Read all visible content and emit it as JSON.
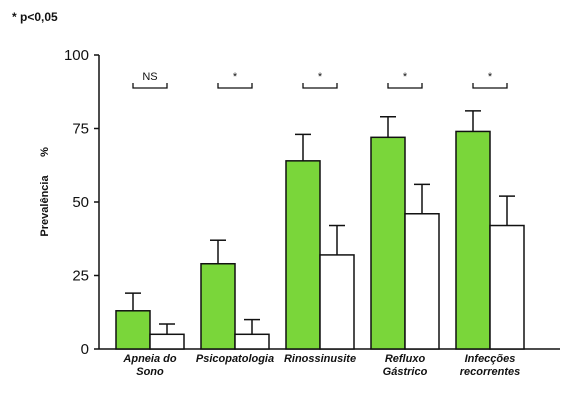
{
  "note": "* p<0,05",
  "colors": {
    "groupA": "#7ad63a",
    "groupB": "#ffffff",
    "stroke": "#111111"
  },
  "chart_data": {
    "type": "bar",
    "title": "",
    "ylabel": "Prevalência",
    "yunit": "%",
    "ylim": [
      0,
      100
    ],
    "yticks": [
      0,
      25,
      50,
      75,
      100
    ],
    "grid": false,
    "categories": [
      [
        "Apneia do",
        "Sono"
      ],
      [
        "Psicopatologia"
      ],
      [
        "Rinossinusite"
      ],
      [
        "Refluxo",
        "Gástrico"
      ],
      [
        "Infecções",
        "recorrentes"
      ]
    ],
    "series": [
      {
        "values": [
          13,
          29,
          64,
          72,
          74
        ],
        "errors": [
          6,
          8,
          9,
          7,
          7
        ],
        "color": "#7ad63a"
      },
      {
        "values": [
          5,
          5,
          32,
          46,
          42
        ],
        "errors": [
          3.5,
          5,
          10,
          10,
          10
        ],
        "color": "#ffffff"
      }
    ],
    "significance": [
      "NS",
      "*",
      "*",
      "*",
      "*"
    ]
  }
}
